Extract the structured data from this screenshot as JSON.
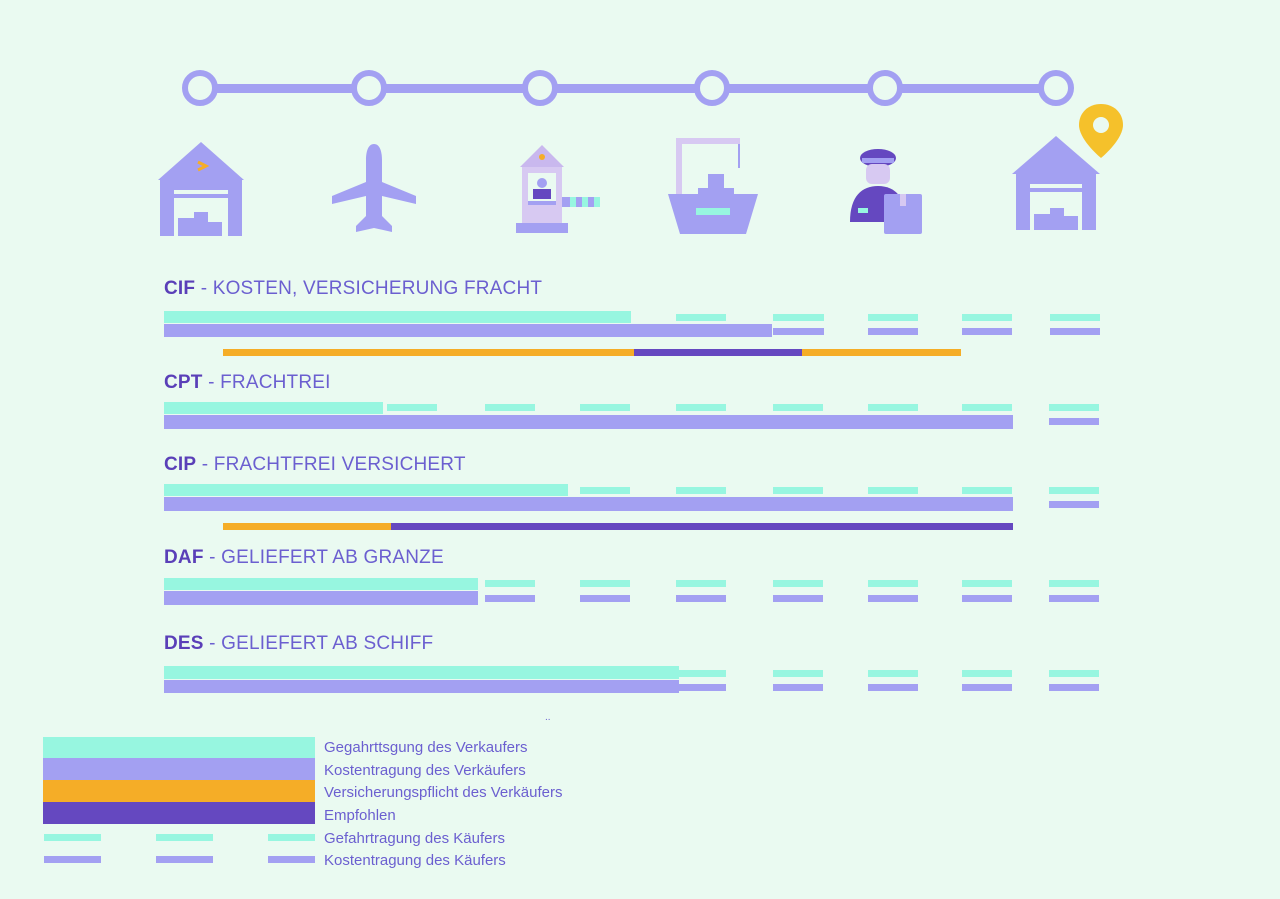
{
  "colors": {
    "seller_risk": "#97f6e0",
    "seller_cost": "#a3a0f2",
    "insurance": "#f5ad27",
    "recommended": "#6548c0",
    "buyer_risk": "#97f6e0",
    "buyer_cost": "#a3a0f2",
    "timeline": "#a3a0f2",
    "pin": "#f5c12b"
  },
  "timeline": {
    "stops": 6,
    "icons": [
      "warehouse-icon",
      "airplane-icon",
      "customs-booth-icon",
      "ship-crane-icon",
      "courier-icon",
      "destination-warehouse-icon"
    ]
  },
  "rows": [
    {
      "code": "CIF",
      "label": " - KOSTEN, VERSICHERUNG FRACHT"
    },
    {
      "code": "CPT",
      "label": " - FRACHTREI"
    },
    {
      "code": "CIP",
      "label": " - FRACHTFREI VERSICHERT"
    },
    {
      "code": "DAF",
      "label": " - GELIEFERT AB GRANZE"
    },
    {
      "code": "DES",
      "label": " - GELIEFERT AB SCHIFF"
    }
  ],
  "legend": [
    "Gegahrttsgung des Verkaufers",
    "Kostentragung des Verkäufers",
    "Versicherungspflicht des Verkäufers",
    "Empfohlen",
    "Gefahrtragung des Käufers",
    "Kostentragung des Käufers"
  ],
  "footnote_mark": ".."
}
